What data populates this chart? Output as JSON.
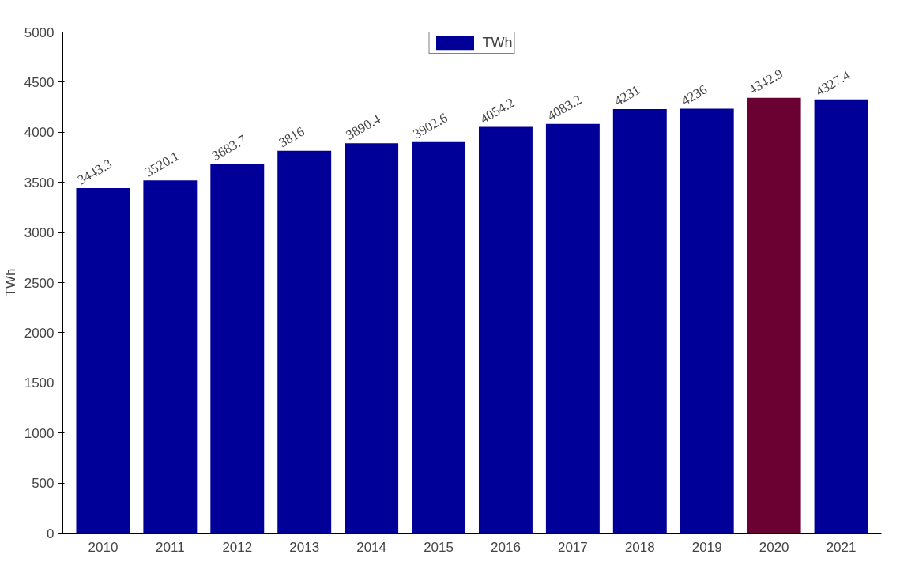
{
  "chart_data": {
    "type": "bar",
    "ylabel": "TWh",
    "categories": [
      "2010",
      "2011",
      "2012",
      "2013",
      "2014",
      "2015",
      "2016",
      "2017",
      "2018",
      "2019",
      "2020",
      "2021"
    ],
    "series": [
      {
        "name": "TWh",
        "color": "#000099",
        "colors": [
          "#000099",
          "#000099",
          "#000099",
          "#000099",
          "#000099",
          "#000099",
          "#000099",
          "#000099",
          "#000099",
          "#000099",
          "#6b0033",
          "#000099"
        ],
        "values": [
          3443.3,
          3520.1,
          3683.7,
          3816,
          3890.4,
          3902.6,
          4054.2,
          4083.2,
          4231,
          4236,
          4342.9,
          4327.4
        ]
      }
    ],
    "ylim": [
      0,
      5000
    ],
    "yticks": [
      0,
      500,
      1000,
      1500,
      2000,
      2500,
      3000,
      3500,
      4000,
      4500,
      5000
    ],
    "data_labels": true,
    "legend": "top",
    "grid": false
  }
}
